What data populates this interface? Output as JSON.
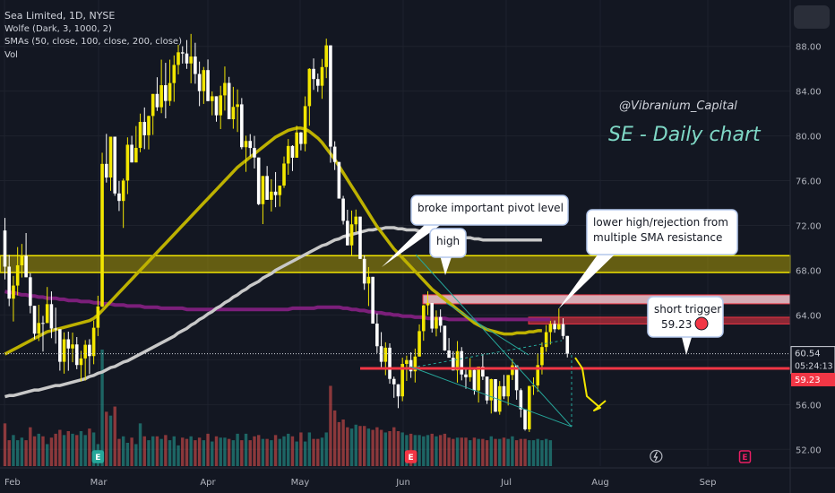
{
  "header": {
    "symbol_line": "Sea Limited, 1D, NYSE",
    "indicator_wolfe": "Wolfe (Dark, 3, 1000, 2)",
    "indicator_sma": "SMAs (50, close, 100, close, 200, close)",
    "indicator_vol": "Vol"
  },
  "chart_data": {
    "type": "candlestick",
    "title": "SE - Daily chart",
    "watermark": "@Vibranium_Capital",
    "colors": {
      "background": "#131722",
      "up": "#f2e600",
      "down": "#ffffff",
      "sma50": "#bdb100",
      "sma100": "#c8c8c8",
      "sma200": "#7b1f7a",
      "resistance_band": "#c8b400",
      "trigger_line": "#f23645",
      "wolfe": "#26a69a",
      "annotation_arrow": "#f2e600"
    },
    "x_axis_labels": [
      "Feb",
      "Mar",
      "Apr",
      "May",
      "Jun",
      "Jul",
      "Aug",
      "Sep"
    ],
    "y_axis_labels": [
      "52.00",
      "56.00",
      "60.00",
      "64.00",
      "68.00",
      "72.00",
      "76.00",
      "80.00",
      "84.00",
      "88.00"
    ],
    "ylim": [
      50.5,
      91.5
    ],
    "price_labels": {
      "last_price": "60.54",
      "countdown": "05:24:13",
      "trigger_price": "59.23"
    },
    "annotations": {
      "pivot": "broke important pivot level",
      "high": "high",
      "rejection_line1": "lower high/rejection from",
      "rejection_line2": "multiple SMA resistance",
      "trigger_line1": "short trigger",
      "trigger_line2": "59.23"
    },
    "levels": {
      "resistance_band": [
        67.8,
        69.3
      ],
      "pink_zone": [
        65.0,
        65.8
      ],
      "red_zone": [
        63.2,
        63.8
      ],
      "trigger": 59.23,
      "last": 60.54
    },
    "event_markers": [
      {
        "letter": "E",
        "day": 22
      },
      {
        "letter": "E",
        "day": 96
      },
      {
        "letter": "E",
        "day": 175
      }
    ],
    "dividend_marker": {
      "day": 154
    },
    "ohlc": [
      [
        71.55,
        72.67,
        67.18,
        68.32
      ],
      [
        68.32,
        69.37,
        64.79,
        65.46
      ],
      [
        65.46,
        67.49,
        63.42,
        66.63
      ],
      [
        66.63,
        70.07,
        65.75,
        68.44
      ],
      [
        68.44,
        70.35,
        67.35,
        69.29
      ],
      [
        69.29,
        71.32,
        67.37,
        67.37
      ],
      [
        67.37,
        67.74,
        64.15,
        64.82
      ],
      [
        64.82,
        64.82,
        61.84,
        62.33
      ],
      [
        62.33,
        64.91,
        61.67,
        63.29
      ],
      [
        63.29,
        63.92,
        60.73,
        63.28
      ],
      [
        63.28,
        66.5,
        63.28,
        64.97
      ],
      [
        64.97,
        66.11,
        61.93,
        62.79
      ],
      [
        62.79,
        64.66,
        61.44,
        62.73
      ],
      [
        62.73,
        62.73,
        59.03,
        59.82
      ],
      [
        59.82,
        62.45,
        58.76,
        61.83
      ],
      [
        61.83,
        62.51,
        59.02,
        61.01
      ],
      [
        61.01,
        62.43,
        59.78,
        61.37
      ],
      [
        61.37,
        62.03,
        59.16,
        59.53
      ],
      [
        59.53,
        60.8,
        58.07,
        60.12
      ],
      [
        60.12,
        61.75,
        58.14,
        61.34
      ],
      [
        61.34,
        61.84,
        58.73,
        60.33
      ],
      [
        60.33,
        63.5,
        59.6,
        62.86
      ],
      [
        62.86,
        65.72,
        62.12,
        64.76
      ],
      [
        64.76,
        78.5,
        64.68,
        77.5
      ],
      [
        77.5,
        80.18,
        75.83,
        76.28
      ],
      [
        76.28,
        79.93,
        75.09,
        79.93
      ],
      [
        79.93,
        79.93,
        74.65,
        74.86
      ],
      [
        74.86,
        75.98,
        73.29,
        74.19
      ],
      [
        74.19,
        76.19,
        71.78,
        76.01
      ],
      [
        76.01,
        79.87,
        74.8,
        79.21
      ],
      [
        79.21,
        80.01,
        77.63,
        77.63
      ],
      [
        77.63,
        80.88,
        77.63,
        78.93
      ],
      [
        78.93,
        81.99,
        78.54,
        81.25
      ],
      [
        81.25,
        82.54,
        78.82,
        80.06
      ],
      [
        80.06,
        81.81,
        78.79,
        81.78
      ],
      [
        81.78,
        83.75,
        80.09,
        83.75
      ],
      [
        83.75,
        85.24,
        82.23,
        82.56
      ],
      [
        82.56,
        86.81,
        82.03,
        84.53
      ],
      [
        84.53,
        86.53,
        81.57,
        83.12
      ],
      [
        83.12,
        86.81,
        82.69,
        84.72
      ],
      [
        84.72,
        87.19,
        83.05,
        86.34
      ],
      [
        86.34,
        88.14,
        85.49,
        87.47
      ],
      [
        87.47,
        88.01,
        86.46,
        87.36
      ],
      [
        87.36,
        88.56,
        85.99,
        86.47
      ],
      [
        86.47,
        89.11,
        84.7,
        87.09
      ],
      [
        87.09,
        88.32,
        84.66,
        85.53
      ],
      [
        85.53,
        86.64,
        82.66,
        84.0
      ],
      [
        84.0,
        86.16,
        82.86,
        85.88
      ],
      [
        85.88,
        86.83,
        83.1,
        83.11
      ],
      [
        83.11,
        83.97,
        81.84,
        83.54
      ],
      [
        83.54,
        83.54,
        81.27,
        81.84
      ],
      [
        81.84,
        84.47,
        80.61,
        83.62
      ],
      [
        83.62,
        86.2,
        82.26,
        84.73
      ],
      [
        84.73,
        85.27,
        81.49,
        81.49
      ],
      [
        81.49,
        84.38,
        80.64,
        82.59
      ],
      [
        82.59,
        84.15,
        80.35,
        82.82
      ],
      [
        82.82,
        83.38,
        78.81,
        78.99
      ],
      [
        78.99,
        80.02,
        76.79,
        79.55
      ],
      [
        79.55,
        80.16,
        78.15,
        78.92
      ],
      [
        78.92,
        80.0,
        77.09,
        78.07
      ],
      [
        78.07,
        78.07,
        73.81,
        73.9
      ],
      [
        73.9,
        76.42,
        72.12,
        76.42
      ],
      [
        76.42,
        77.31,
        74.29,
        74.29
      ],
      [
        74.29,
        76.13,
        73.24,
        75.02
      ],
      [
        75.02,
        76.77,
        73.63,
        74.71
      ],
      [
        74.71,
        75.56,
        73.68,
        75.56
      ],
      [
        75.56,
        78.16,
        75.35,
        77.53
      ],
      [
        77.53,
        79.72,
        76.53,
        79.1
      ],
      [
        79.1,
        79.17,
        76.86,
        78.05
      ],
      [
        78.05,
        80.91,
        78.05,
        80.31
      ],
      [
        80.31,
        80.35,
        78.71,
        79.28
      ],
      [
        79.28,
        83.53,
        78.62,
        82.66
      ],
      [
        82.66,
        86.05,
        80.91,
        85.99
      ],
      [
        85.99,
        86.92,
        84.11,
        85.08
      ],
      [
        85.08,
        85.57,
        83.93,
        84.48
      ],
      [
        84.48,
        86.88,
        83.31,
        86.15
      ],
      [
        86.15,
        88.69,
        85.16,
        88.09
      ],
      [
        88.09,
        88.09,
        77.61,
        79.04
      ],
      [
        79.04,
        79.52,
        76.95,
        77.67
      ],
      [
        77.67,
        77.67,
        74.4,
        74.4
      ],
      [
        74.4,
        74.64,
        72.08,
        72.41
      ],
      [
        72.41,
        73.4,
        70.22,
        70.22
      ],
      [
        70.22,
        73.33,
        69.29,
        72.1
      ],
      [
        72.1,
        73.42,
        71.4,
        72.79
      ],
      [
        72.79,
        72.79,
        69.0,
        69.01
      ],
      [
        69.01,
        69.34,
        66.25,
        66.81
      ],
      [
        66.81,
        68.28,
        64.8,
        67.41
      ],
      [
        67.41,
        67.41,
        63.23,
        63.23
      ],
      [
        63.23,
        64.14,
        60.6,
        61.21
      ],
      [
        61.21,
        62.47,
        59.35,
        59.82
      ],
      [
        59.82,
        61.56,
        58.62,
        61.08
      ],
      [
        61.08,
        61.47,
        57.86,
        58.29
      ],
      [
        58.29,
        58.5,
        56.6,
        57.81
      ],
      [
        57.81,
        57.82,
        55.68,
        56.73
      ],
      [
        56.73,
        60.19,
        56.3,
        59.63
      ],
      [
        59.63,
        60.37,
        58.11,
        59.97
      ],
      [
        59.97,
        60.66,
        58.38,
        58.97
      ],
      [
        58.97,
        61.0,
        57.97,
        60.29
      ],
      [
        60.29,
        63.16,
        60.28,
        62.56
      ],
      [
        62.56,
        64.9,
        61.7,
        64.86
      ],
      [
        64.86,
        66.13,
        63.99,
        65.07
      ],
      [
        65.07,
        65.07,
        62.43,
        62.79
      ],
      [
        62.79,
        64.41,
        62.09,
        63.82
      ],
      [
        63.82,
        64.5,
        62.45,
        63.04
      ],
      [
        63.04,
        63.04,
        60.8,
        60.83
      ],
      [
        60.83,
        61.94,
        60.18,
        60.18
      ],
      [
        60.18,
        60.77,
        59.05,
        59.05
      ],
      [
        59.05,
        61.67,
        57.96,
        60.77
      ],
      [
        60.77,
        61.13,
        58.16,
        58.69
      ],
      [
        58.69,
        59.24,
        57.41,
        58.44
      ],
      [
        58.44,
        60.15,
        58.05,
        59.09
      ],
      [
        59.09,
        59.23,
        56.88,
        57.26
      ],
      [
        57.26,
        59.39,
        56.18,
        59.39
      ],
      [
        59.39,
        60.52,
        58.19,
        58.5
      ],
      [
        58.5,
        58.5,
        56.05,
        56.37
      ],
      [
        56.37,
        58.31,
        55.2,
        58.27
      ],
      [
        58.27,
        58.27,
        55.33,
        55.36
      ],
      [
        55.36,
        58.1,
        55.09,
        57.64
      ],
      [
        57.64,
        58.65,
        56.49,
        56.73
      ],
      [
        56.73,
        58.64,
        55.92,
        58.64
      ],
      [
        58.64,
        60.06,
        58.19,
        59.5
      ],
      [
        59.5,
        59.5,
        56.43,
        57.28
      ],
      [
        57.28,
        57.44,
        54.86,
        55.57
      ],
      [
        55.57,
        55.57,
        53.67,
        53.79
      ],
      [
        53.79,
        57.66,
        53.55,
        57.66
      ],
      [
        57.66,
        58.43,
        56.86,
        57.7
      ],
      [
        57.7,
        60.58,
        57.13,
        59.52
      ],
      [
        59.52,
        61.56,
        58.69,
        61.14
      ],
      [
        61.14,
        63.1,
        60.71,
        62.47
      ],
      [
        62.47,
        63.48,
        61.36,
        63.2
      ],
      [
        63.2,
        63.51,
        62.42,
        62.73
      ],
      [
        62.73,
        64.57,
        62.66,
        63.18
      ],
      [
        63.18,
        63.71,
        61.84,
        62.13
      ],
      [
        62.13,
        62.13,
        60.21,
        60.54
      ]
    ],
    "volume": [
      3.3,
      2.0,
      2.4,
      2.0,
      2.2,
      2.0,
      3.0,
      2.3,
      2.5,
      2.3,
      1.7,
      2.2,
      2.5,
      2.8,
      2.4,
      2.7,
      2.5,
      2.4,
      2.7,
      2.4,
      2.9,
      2.6,
      1.7,
      9.0,
      4.2,
      3.9,
      4.6,
      2.1,
      2.3,
      1.8,
      2.2,
      1.7,
      3.3,
      2.3,
      2.0,
      2.3,
      2.3,
      2.1,
      2.4,
      2.0,
      2.3,
      1.6,
      2.2,
      2.1,
      2.3,
      2.0,
      2.2,
      2.0,
      2.5,
      1.9,
      2.3,
      2.2,
      2.2,
      2.1,
      2.0,
      2.5,
      2.0,
      2.5,
      2.0,
      2.3,
      2.4,
      2.1,
      2.1,
      2.0,
      2.4,
      2.1,
      2.3,
      2.5,
      2.3,
      1.9,
      2.6,
      1.9,
      2.6,
      2.1,
      2.1,
      2.2,
      2.6,
      6.2,
      4.3,
      3.4,
      3.6,
      3.0,
      2.9,
      3.2,
      3.1,
      3.1,
      2.9,
      2.8,
      3.0,
      2.8,
      2.6,
      2.7,
      3.0,
      2.7,
      2.6,
      2.4,
      2.5,
      2.4,
      2.4,
      2.3,
      2.4,
      2.5,
      2.3,
      2.4,
      2.5,
      2.2,
      2.1,
      2.2,
      2.2,
      2.2,
      2.0,
      2.2,
      2.1,
      2.1,
      2.0,
      2.3,
      2.1,
      2.1,
      2.2,
      2.1,
      2.3,
      2.0,
      2.1,
      2.1,
      2.0,
      2.0,
      2.1,
      2.0,
      2.1,
      2.0
    ],
    "sma50": [
      60.5,
      60.7,
      60.9,
      61.1,
      61.3,
      61.5,
      61.7,
      61.9,
      62.1,
      62.3,
      62.5,
      62.6,
      62.7,
      62.8,
      62.9,
      63.0,
      63.1,
      63.2,
      63.3,
      63.4,
      63.5,
      63.7,
      64.0,
      64.4,
      64.8,
      65.2,
      65.6,
      66.0,
      66.4,
      66.8,
      67.2,
      67.6,
      68.0,
      68.4,
      68.8,
      69.2,
      69.6,
      70.0,
      70.4,
      70.8,
      71.2,
      71.6,
      72.0,
      72.4,
      72.8,
      73.2,
      73.6,
      74.0,
      74.4,
      74.8,
      75.2,
      75.6,
      76.0,
      76.4,
      76.8,
      77.2,
      77.5,
      77.8,
      78.1,
      78.4,
      78.7,
      79.0,
      79.3,
      79.6,
      79.9,
      80.1,
      80.3,
      80.5,
      80.6,
      80.7,
      80.7,
      80.6,
      80.4,
      80.1,
      79.8,
      79.4,
      78.9,
      78.4,
      77.9,
      77.3,
      76.7,
      76.1,
      75.5,
      74.9,
      74.3,
      73.7,
      73.1,
      72.5,
      71.9,
      71.4,
      70.9,
      70.4,
      69.9,
      69.5,
      69.1,
      68.7,
      68.3,
      67.9,
      67.5,
      67.1,
      66.7,
      66.3,
      66.0,
      65.7,
      65.4,
      65.1,
      64.8,
      64.5,
      64.2,
      63.9,
      63.6,
      63.3,
      63.1,
      62.9,
      62.7,
      62.6,
      62.5,
      62.4,
      62.3,
      62.3,
      62.3,
      62.4,
      62.4,
      62.4,
      62.5,
      62.5,
      62.6,
      62.6
    ],
    "sma100": [
      56.7,
      56.8,
      56.8,
      56.9,
      57.0,
      57.1,
      57.2,
      57.3,
      57.3,
      57.4,
      57.5,
      57.6,
      57.7,
      57.7,
      57.8,
      57.9,
      58.0,
      58.1,
      58.2,
      58.3,
      58.5,
      58.6,
      58.8,
      58.9,
      59.1,
      59.3,
      59.4,
      59.6,
      59.8,
      59.9,
      60.1,
      60.3,
      60.5,
      60.7,
      60.9,
      61.1,
      61.3,
      61.5,
      61.7,
      61.9,
      62.1,
      62.4,
      62.6,
      62.8,
      63.1,
      63.3,
      63.6,
      63.8,
      64.1,
      64.3,
      64.6,
      64.8,
      65.1,
      65.3,
      65.6,
      65.8,
      66.1,
      66.3,
      66.6,
      66.8,
      67.0,
      67.3,
      67.5,
      67.7,
      68.0,
      68.2,
      68.4,
      68.6,
      68.8,
      69.0,
      69.2,
      69.4,
      69.6,
      69.8,
      70.0,
      70.2,
      70.3,
      70.5,
      70.7,
      70.8,
      71.0,
      71.1,
      71.2,
      71.3,
      71.4,
      71.5,
      71.6,
      71.6,
      71.7,
      71.7,
      71.8,
      71.8,
      71.8,
      71.7,
      71.7,
      71.6,
      71.6,
      71.6,
      71.5,
      71.5,
      71.5,
      71.4,
      71.4,
      71.3,
      71.2,
      71.2,
      71.1,
      71.1,
      71.0,
      70.9,
      70.9,
      70.8,
      70.8,
      70.7,
      70.7,
      70.7,
      70.7,
      70.7,
      70.7,
      70.7,
      70.7,
      70.7,
      70.7,
      70.7,
      70.7,
      70.7,
      70.7,
      70.7
    ],
    "sma200": [
      66.1,
      66.0,
      66.0,
      65.9,
      65.8,
      65.8,
      65.7,
      65.7,
      65.6,
      65.6,
      65.5,
      65.5,
      65.5,
      65.4,
      65.4,
      65.3,
      65.3,
      65.3,
      65.2,
      65.2,
      65.2,
      65.1,
      65.1,
      65.0,
      65.0,
      65.0,
      64.9,
      64.9,
      64.9,
      64.8,
      64.8,
      64.8,
      64.8,
      64.7,
      64.7,
      64.7,
      64.7,
      64.6,
      64.6,
      64.6,
      64.6,
      64.6,
      64.6,
      64.5,
      64.5,
      64.5,
      64.5,
      64.5,
      64.5,
      64.5,
      64.5,
      64.5,
      64.5,
      64.5,
      64.5,
      64.5,
      64.5,
      64.5,
      64.5,
      64.5,
      64.5,
      64.5,
      64.5,
      64.5,
      64.5,
      64.5,
      64.5,
      64.5,
      64.6,
      64.6,
      64.6,
      64.6,
      64.6,
      64.6,
      64.7,
      64.7,
      64.7,
      64.7,
      64.7,
      64.7,
      64.6,
      64.6,
      64.5,
      64.5,
      64.4,
      64.4,
      64.3,
      64.3,
      64.2,
      64.2,
      64.1,
      64.1,
      64.0,
      64.0,
      63.9,
      63.9,
      63.9,
      63.8,
      63.8,
      63.8,
      63.7,
      63.7,
      63.7,
      63.7,
      63.7,
      63.6,
      63.6,
      63.6,
      63.6,
      63.6,
      63.6,
      63.6,
      63.6,
      63.6,
      63.6,
      63.6,
      63.6,
      63.6,
      63.6,
      63.6,
      63.6,
      63.6,
      63.6,
      63.6,
      63.6,
      63.6,
      63.6,
      63.6,
      63.6,
      63.6
    ]
  }
}
